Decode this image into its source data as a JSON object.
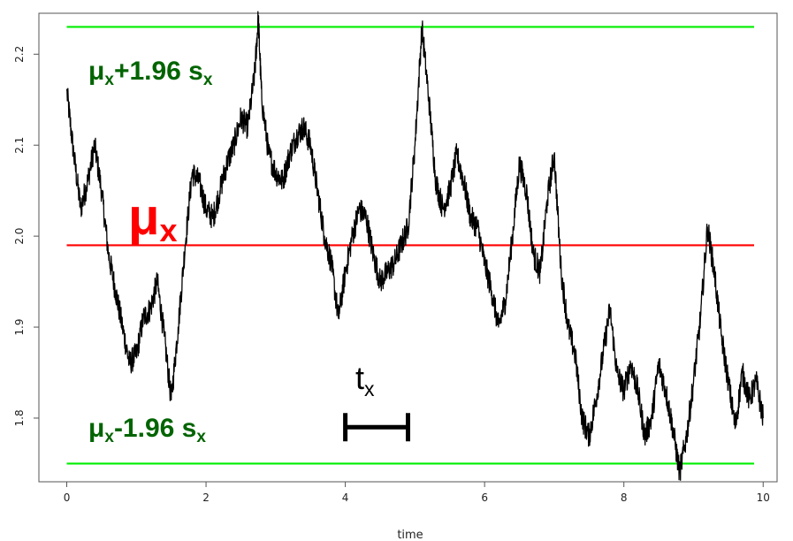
{
  "chart_data": {
    "type": "line",
    "title": "",
    "xlabel": "time",
    "ylabel": "",
    "xlim": [
      -0.4,
      10.2
    ],
    "ylim": [
      1.73,
      2.245
    ],
    "x_ticks": [
      0,
      2,
      4,
      6,
      8,
      10
    ],
    "y_ticks": [
      1.8,
      1.9,
      2.0,
      2.1,
      2.2
    ],
    "x_tick_labels": [
      "0",
      "2",
      "4",
      "6",
      "8",
      "10"
    ],
    "y_tick_labels": [
      "1.8",
      "1.9",
      "2.0",
      "2.1",
      "2.2"
    ],
    "grid": false,
    "series": [
      {
        "color": "#000000",
        "x": [
          0,
          0.1,
          0.2,
          0.3,
          0.4,
          0.5,
          0.6,
          0.7,
          0.8,
          0.9,
          1.0,
          1.1,
          1.2,
          1.3,
          1.4,
          1.5,
          1.6,
          1.7,
          1.8,
          1.9,
          2.0,
          2.1,
          2.2,
          2.3,
          2.4,
          2.5,
          2.6,
          2.7,
          2.75,
          2.8,
          2.9,
          3.0,
          3.1,
          3.2,
          3.3,
          3.4,
          3.5,
          3.6,
          3.7,
          3.8,
          3.9,
          4.0,
          4.1,
          4.2,
          4.3,
          4.4,
          4.5,
          4.6,
          4.7,
          4.8,
          4.9,
          5.0,
          5.1,
          5.2,
          5.3,
          5.4,
          5.5,
          5.6,
          5.7,
          5.8,
          5.9,
          6.0,
          6.1,
          6.2,
          6.3,
          6.4,
          6.5,
          6.6,
          6.7,
          6.8,
          6.9,
          7.0,
          7.1,
          7.2,
          7.3,
          7.4,
          7.5,
          7.6,
          7.7,
          7.8,
          7.9,
          8.0,
          8.1,
          8.2,
          8.3,
          8.4,
          8.5,
          8.6,
          8.7,
          8.8,
          8.9,
          9.0,
          9.1,
          9.2,
          9.3,
          9.4,
          9.5,
          9.6,
          9.7,
          9.8,
          9.9,
          10.0
        ],
        "values": [
          2.16,
          2.09,
          2.03,
          2.06,
          2.1,
          2.05,
          1.98,
          1.94,
          1.9,
          1.86,
          1.87,
          1.91,
          1.92,
          1.95,
          1.89,
          1.82,
          1.9,
          1.99,
          2.07,
          2.06,
          2.03,
          2.02,
          2.05,
          2.08,
          2.1,
          2.13,
          2.12,
          2.18,
          2.24,
          2.15,
          2.09,
          2.07,
          2.06,
          2.09,
          2.11,
          2.12,
          2.1,
          2.05,
          2.0,
          1.97,
          1.91,
          1.96,
          2.0,
          2.03,
          2.02,
          1.98,
          1.95,
          1.96,
          1.97,
          1.99,
          2.01,
          2.1,
          2.23,
          2.15,
          2.06,
          2.03,
          2.05,
          2.09,
          2.06,
          2.02,
          2.01,
          1.97,
          1.94,
          1.9,
          1.93,
          2.0,
          2.08,
          2.05,
          1.98,
          1.96,
          2.04,
          2.09,
          1.96,
          1.9,
          1.87,
          1.8,
          1.78,
          1.82,
          1.87,
          1.92,
          1.85,
          1.83,
          1.86,
          1.83,
          1.78,
          1.8,
          1.86,
          1.83,
          1.79,
          1.74,
          1.78,
          1.84,
          1.91,
          2.01,
          1.96,
          1.89,
          1.84,
          1.79,
          1.85,
          1.82,
          1.84,
          1.8
        ]
      }
    ],
    "hlines": [
      {
        "name": "mean",
        "y": 1.99,
        "color": "#ff0000"
      },
      {
        "name": "upper",
        "y": 2.23,
        "color": "#00ee00"
      },
      {
        "name": "lower",
        "y": 1.75,
        "color": "#00ee00"
      }
    ],
    "annotations": {
      "mu_symbol": "μ",
      "x_sub": "x",
      "upper_rest": "+1.96 s",
      "lower_rest": "-1.96 s",
      "t_symbol": "t",
      "tx_bar": {
        "x_start": 4.0,
        "x_end": 4.9,
        "y": 1.79
      }
    }
  }
}
